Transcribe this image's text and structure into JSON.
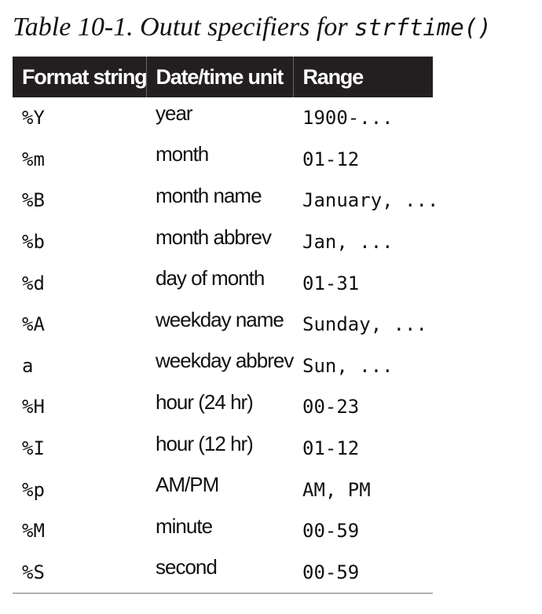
{
  "caption": {
    "label": "Table 10-1. Outut specifiers for ",
    "code": "strftime()"
  },
  "table": {
    "headers": [
      "Format string",
      "Date/time unit",
      "Range"
    ],
    "rows": [
      {
        "format": "%Y",
        "unit": "year",
        "range": "1900-..."
      },
      {
        "format": "%m",
        "unit": "month",
        "range": "01-12"
      },
      {
        "format": "%B",
        "unit": "month name",
        "range": "January, ..."
      },
      {
        "format": "%b",
        "unit": "month abbrev",
        "range": "Jan, ..."
      },
      {
        "format": "%d",
        "unit": "day of month",
        "range": "01-31"
      },
      {
        "format": "%A",
        "unit": "weekday name",
        "range": "Sunday, ..."
      },
      {
        "format": "a",
        "unit": "weekday abbrev",
        "range": "Sun, ..."
      },
      {
        "format": "%H",
        "unit": "hour (24 hr)",
        "range": "00-23"
      },
      {
        "format": "%I",
        "unit": "hour (12 hr)",
        "range": "01-12"
      },
      {
        "format": "%p",
        "unit": "AM/PM",
        "range": "AM, PM"
      },
      {
        "format": "%M",
        "unit": "minute",
        "range": "00-59"
      },
      {
        "format": "%S",
        "unit": "second",
        "range": "00-59"
      }
    ]
  }
}
